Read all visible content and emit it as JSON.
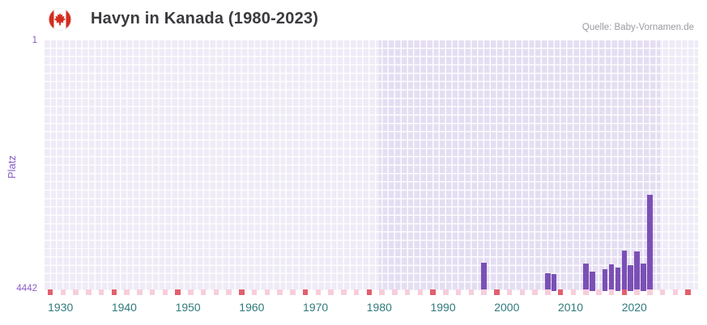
{
  "header": {
    "title": "Havyn in Kanada (1980-2023)",
    "source": "Quelle: Baby-Vornamen.de",
    "flag_icon": "canada-flag-icon"
  },
  "chart_data": {
    "type": "bar",
    "title": "Havyn in Kanada (1980-2023)",
    "xlabel": "",
    "ylabel": "Platz",
    "legend_position": "none",
    "grid": true,
    "x_range": [
      1927.5,
      2030
    ],
    "x_ticks": [
      1930,
      1940,
      1950,
      1960,
      1970,
      1980,
      1990,
      2000,
      2010,
      2020
    ],
    "y_axis": {
      "tick_top": "1",
      "tick_bottom": "4442",
      "min": 1,
      "max": 4442,
      "inverted": true
    },
    "highlight_range": [
      1980,
      2023
    ],
    "bar_color": "#7b50b5",
    "colors": {
      "plot_bg": "#efebf7",
      "highlight_bg": "#e5def2",
      "grid_line": "#ffffff",
      "y_label": "#8a5dc8",
      "x_label": "#2f7a7c",
      "strip_pink": "#f7cedb",
      "strip_red": "#e2606e",
      "flag_red": "#d52b1e"
    },
    "points": [
      {
        "year": 1996,
        "rank": 3940
      },
      {
        "year": 2006,
        "rank": 4120
      },
      {
        "year": 2007,
        "rank": 4140
      },
      {
        "year": 2012,
        "rank": 3950
      },
      {
        "year": 2013,
        "rank": 4100
      },
      {
        "year": 2015,
        "rank": 4050
      },
      {
        "year": 2016,
        "rank": 3970
      },
      {
        "year": 2017,
        "rank": 4030
      },
      {
        "year": 2018,
        "rank": 3730
      },
      {
        "year": 2019,
        "rank": 3990
      },
      {
        "year": 2020,
        "rank": 3740
      },
      {
        "year": 2021,
        "rank": 3960
      },
      {
        "year": 2022,
        "rank": 2730
      }
    ],
    "strip": {
      "start": 1928,
      "end": 2028,
      "step": 2,
      "red_interval": 10
    }
  }
}
